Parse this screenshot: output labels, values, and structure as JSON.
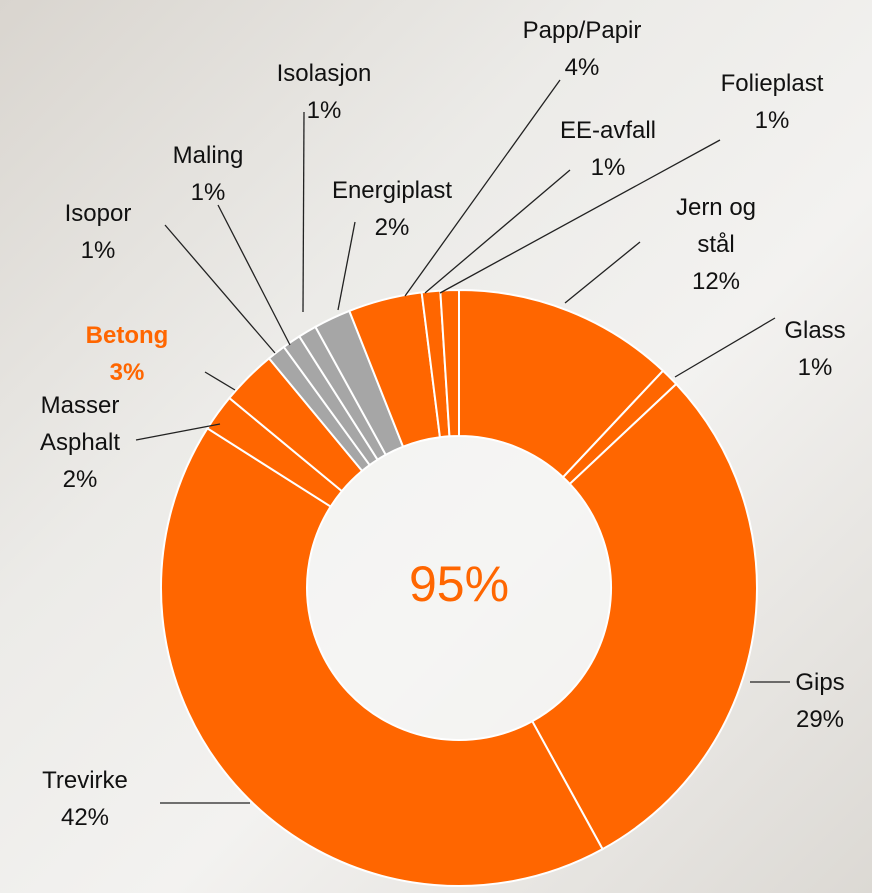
{
  "chart_data": {
    "type": "donut",
    "categories": [
      "Jern og stål",
      "Glass",
      "Gips",
      "Trevirke",
      "Masser Asphalt",
      "Betong",
      "Isopor",
      "Maling",
      "Isolasjon",
      "Energiplast",
      "Papp/Papir",
      "EE-avfall",
      "Folieplast"
    ],
    "values": [
      12,
      1,
      29,
      42,
      2,
      3,
      1,
      1,
      1,
      2,
      4,
      1,
      1
    ],
    "value_labels": [
      "12%",
      "1%",
      "29%",
      "42%",
      "2%",
      "3%",
      "1%",
      "1%",
      "1%",
      "2%",
      "4%",
      "1%",
      "1%"
    ],
    "colors": [
      "#ff6600",
      "#ff6600",
      "#ff6600",
      "#ff6600",
      "#ff6600",
      "#ff6600",
      "#a6a6a6",
      "#a6a6a6",
      "#a6a6a6",
      "#a6a6a6",
      "#ff6600",
      "#ff6600",
      "#ff6600"
    ],
    "highlight": "Betong",
    "center_label": "95%"
  }
}
